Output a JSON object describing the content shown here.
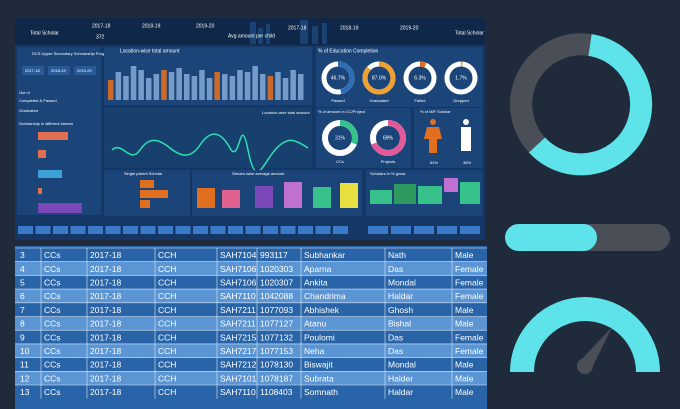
{
  "header": {
    "kpi_label": "Total Scholar",
    "years": [
      "2017-18",
      "2018-19",
      "2019-20"
    ],
    "total": "372",
    "avg_label": "Avg amount per child"
  },
  "program": {
    "title": "DCS Upper Secondary Scholarship Program",
    "stream_title": "Scholarship in different stream",
    "status": [
      "Out of",
      "Completed & Passed",
      "Graduated"
    ]
  },
  "panels": {
    "location": "Location-wise total amount",
    "location_line": "Location-wise total amount",
    "education": "% of Education Completion",
    "cc_project": "% of amount in CC/Project",
    "gender": "% of M/F Scholar",
    "single_parent": "Single parent Scholar",
    "stream_avg": "Stream-wise average amount",
    "gross": "Scholars in % gross"
  },
  "completion": [
    {
      "name": "Passed",
      "value": 46.7,
      "label": "46.7%",
      "color": "#2f6db5"
    },
    {
      "name": "Graduated",
      "value": 87.0,
      "label": "87.0%",
      "color": "#f0a030"
    },
    {
      "name": "Failed",
      "value": 6.3,
      "label": "6.3%",
      "color": "#e07020"
    },
    {
      "name": "Dropped",
      "value": 1.7,
      "label": "1.7%",
      "color": "#f0a030"
    }
  ],
  "split": [
    {
      "name": "CCs",
      "value": 31,
      "label": "31%",
      "color": "#36c28a"
    },
    {
      "name": "Projects",
      "value": 69,
      "label": "69%",
      "color": "#e05a9a"
    }
  ],
  "gender": [
    {
      "value": 64,
      "label": "64%"
    },
    {
      "value": 36,
      "label": "36%"
    }
  ],
  "table": {
    "rows": [
      [
        "3",
        "CCs",
        "2017-18",
        "CCH",
        "SAH7104",
        "993117",
        "Subhankar",
        "Nath",
        "Male"
      ],
      [
        "4",
        "CCs",
        "2017-18",
        "CCH",
        "SAH7106",
        "1020303",
        "Aparna",
        "Das",
        "Female"
      ],
      [
        "5",
        "CCs",
        "2017-18",
        "CCH",
        "SAH7106",
        "1020307",
        "Ankita",
        "Mondal",
        "Female"
      ],
      [
        "6",
        "CCs",
        "2017-18",
        "CCH",
        "SAH7110",
        "1042088",
        "Chandrima",
        "Haldar",
        "Female"
      ],
      [
        "7",
        "CCs",
        "2017-18",
        "CCH",
        "SAH7211",
        "1077093",
        "Abhishek",
        "Ghosh",
        "Male"
      ],
      [
        "8",
        "CCs",
        "2017-18",
        "CCH",
        "SAH7211",
        "1077127",
        "Atanu",
        "Bishal",
        "Male"
      ],
      [
        "9",
        "CCs",
        "2017-18",
        "CCH",
        "SAH7215",
        "1077132",
        "Poulomi",
        "Das",
        "Female"
      ],
      [
        "10",
        "CCs",
        "2017-18",
        "CCH",
        "SAH7217",
        "1077153",
        "Neha",
        "Das",
        "Female"
      ],
      [
        "11",
        "CCs",
        "2017-18",
        "CCH",
        "SAH7212",
        "1078130",
        "Biswajit",
        "Mondal",
        "Male"
      ],
      [
        "12",
        "CCs",
        "2017-18",
        "CCH",
        "SAH7101",
        "1078187",
        "Subrata",
        "Halder",
        "Male"
      ],
      [
        "13",
        "CCs",
        "2017-18",
        "CCH",
        "SAH7110",
        "1108403",
        "Somnath",
        "Haldar",
        "Male"
      ]
    ]
  }
}
